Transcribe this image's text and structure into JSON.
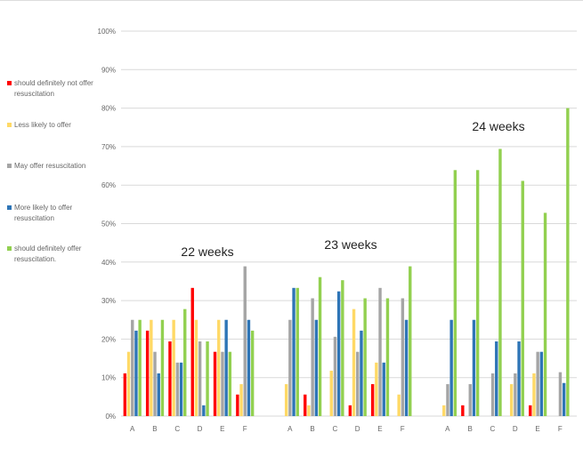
{
  "chart_data": {
    "type": "bar",
    "title": "",
    "xlabel": "",
    "ylabel": "",
    "ylim": [
      0,
      100
    ],
    "y_ticks": [
      "0%",
      "10%",
      "20%",
      "30%",
      "40%",
      "50%",
      "60%",
      "70%",
      "80%",
      "90%",
      "100%"
    ],
    "grid": true,
    "legend_placement": "left",
    "series_names": [
      "should definitely not offer resuscitation",
      "Less likely to offer",
      "May offer resuscitation",
      "More likely to offer resuscitation",
      "should definitely offer resuscitation."
    ],
    "colors": [
      "#ff0000",
      "#ffd966",
      "#a5a5a5",
      "#2e75b6",
      "#92d050"
    ],
    "groups": [
      {
        "label": "22 weeks",
        "categories": [
          "A",
          "B",
          "C",
          "D",
          "E",
          "F"
        ],
        "values": [
          [
            11.1,
            16.7,
            25,
            22.2,
            25
          ],
          [
            22.2,
            25,
            16.7,
            11.1,
            25
          ],
          [
            19.4,
            25,
            13.9,
            13.9,
            27.8
          ],
          [
            33.3,
            25,
            19.4,
            2.8,
            19.4
          ],
          [
            16.7,
            25,
            16.7,
            25,
            16.7
          ],
          [
            5.6,
            8.3,
            38.9,
            25,
            22.2
          ]
        ]
      },
      {
        "label": "23 weeks",
        "categories": [
          "A",
          "B",
          "C",
          "D",
          "E",
          "F"
        ],
        "values": [
          [
            0,
            8.3,
            25,
            33.3,
            33.3
          ],
          [
            5.6,
            2.8,
            30.6,
            25,
            36.1
          ],
          [
            0,
            11.8,
            20.6,
            32.4,
            35.3
          ],
          [
            2.8,
            27.8,
            16.7,
            22.2,
            30.6
          ],
          [
            8.3,
            13.9,
            33.3,
            13.9,
            30.6
          ],
          [
            0,
            5.6,
            30.6,
            25,
            38.9
          ]
        ]
      },
      {
        "label": "24 weeks",
        "categories": [
          "A",
          "B",
          "C",
          "D",
          "E",
          "F"
        ],
        "values": [
          [
            0,
            2.8,
            8.3,
            25,
            63.9
          ],
          [
            2.8,
            0,
            8.3,
            25,
            63.9
          ],
          [
            0,
            0,
            11.1,
            19.4,
            69.4
          ],
          [
            0,
            8.3,
            11.1,
            19.4,
            61.1
          ],
          [
            2.8,
            11.1,
            16.7,
            16.7,
            52.8
          ],
          [
            0,
            0,
            11.4,
            8.6,
            80
          ]
        ]
      }
    ]
  }
}
